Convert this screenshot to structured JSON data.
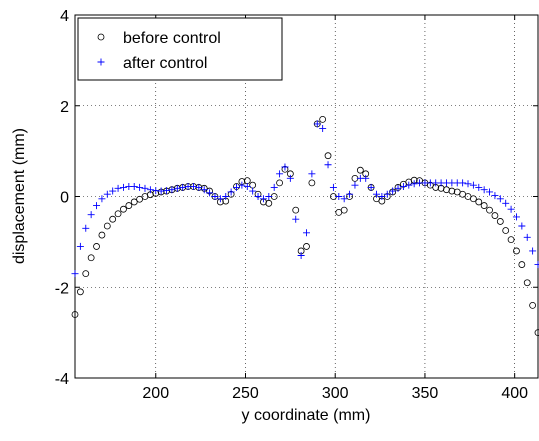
{
  "chart_data": {
    "type": "scatter",
    "x_label": "y coordinate (mm)",
    "y_label": "displacement (mm)",
    "x": [
      155,
      158,
      161,
      164,
      167,
      170,
      173,
      176,
      179,
      182,
      185,
      188,
      191,
      194,
      197,
      200,
      203,
      206,
      209,
      212,
      215,
      218,
      221,
      224,
      227,
      230,
      233,
      236,
      239,
      242,
      245,
      248,
      251,
      254,
      257,
      260,
      263,
      266,
      269,
      272,
      275,
      278,
      281,
      284,
      287,
      290,
      293,
      296,
      299,
      302,
      305,
      308,
      311,
      314,
      317,
      320,
      323,
      326,
      329,
      332,
      335,
      338,
      341,
      344,
      347,
      350,
      353,
      356,
      359,
      362,
      365,
      368,
      371,
      374,
      377,
      380,
      383,
      386,
      389,
      392,
      395,
      398,
      401,
      404,
      407,
      410,
      413
    ],
    "series": [
      {
        "name": "before control",
        "color": "#000000",
        "marker": "circle",
        "values": [
          -2.6,
          -2.1,
          -1.7,
          -1.35,
          -1.1,
          -0.85,
          -0.65,
          -0.5,
          -0.38,
          -0.28,
          -0.2,
          -0.12,
          -0.06,
          0.0,
          0.04,
          0.07,
          0.1,
          0.12,
          0.15,
          0.18,
          0.2,
          0.22,
          0.22,
          0.2,
          0.18,
          0.12,
          0.0,
          -0.12,
          -0.1,
          0.05,
          0.22,
          0.33,
          0.35,
          0.25,
          0.05,
          -0.12,
          -0.15,
          0.0,
          0.3,
          0.6,
          0.5,
          -0.3,
          -1.2,
          -1.1,
          0.3,
          1.6,
          1.7,
          0.9,
          0.0,
          -0.35,
          -0.3,
          0.0,
          0.4,
          0.58,
          0.5,
          0.2,
          -0.05,
          -0.1,
          0.0,
          0.1,
          0.2,
          0.27,
          0.32,
          0.36,
          0.35,
          0.3,
          0.25,
          0.2,
          0.18,
          0.15,
          0.12,
          0.1,
          0.05,
          0.0,
          -0.05,
          -0.12,
          -0.2,
          -0.3,
          -0.42,
          -0.55,
          -0.75,
          -0.95,
          -1.2,
          -1.5,
          -1.9,
          -2.4,
          -3.0
        ]
      },
      {
        "name": "after control",
        "color": "#0000ff",
        "marker": "plus",
        "values": [
          -1.7,
          -1.1,
          -0.7,
          -0.4,
          -0.2,
          -0.05,
          0.05,
          0.12,
          0.18,
          0.2,
          0.22,
          0.22,
          0.2,
          0.18,
          0.15,
          0.13,
          0.12,
          0.13,
          0.15,
          0.18,
          0.2,
          0.22,
          0.22,
          0.2,
          0.15,
          0.08,
          0.0,
          -0.05,
          0.0,
          0.1,
          0.2,
          0.25,
          0.22,
          0.12,
          0.0,
          -0.05,
          0.0,
          0.2,
          0.5,
          0.65,
          0.4,
          -0.5,
          -1.3,
          -0.8,
          0.5,
          1.6,
          1.5,
          0.7,
          0.2,
          0.0,
          -0.05,
          0.05,
          0.25,
          0.4,
          0.4,
          0.2,
          0.05,
          0.0,
          0.05,
          0.12,
          0.18,
          0.22,
          0.25,
          0.28,
          0.3,
          0.3,
          0.3,
          0.3,
          0.3,
          0.3,
          0.3,
          0.3,
          0.3,
          0.28,
          0.25,
          0.2,
          0.15,
          0.1,
          0.02,
          -0.05,
          -0.15,
          -0.28,
          -0.45,
          -0.65,
          -0.9,
          -1.2,
          -1.5
        ]
      }
    ],
    "xlim": [
      155,
      413
    ],
    "ylim": [
      -4,
      4
    ],
    "xticks": [
      200,
      250,
      300,
      350,
      400
    ],
    "yticks": [
      -4,
      -2,
      0,
      2,
      4
    ],
    "grid": true,
    "legend": "upper left"
  }
}
